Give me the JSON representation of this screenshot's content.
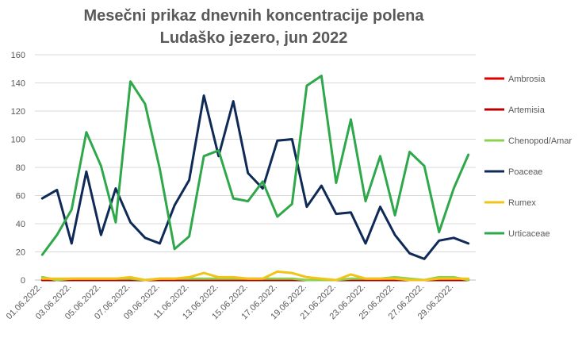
{
  "chart_data": {
    "type": "line",
    "title_lines": [
      "Mesečni prikaz dnevnih koncentracije polena",
      "Ludaško jezero, jun 2022"
    ],
    "xlabel": "",
    "ylabel": "",
    "ylim": [
      0,
      160
    ],
    "yticks": [
      0,
      20,
      40,
      60,
      80,
      100,
      120,
      140,
      160
    ],
    "grid": "horizontal",
    "legend_position": "right",
    "x": [
      "01.06.2022.",
      "02.06.2022.",
      "03.06.2022.",
      "04.06.2022.",
      "05.06.2022.",
      "06.06.2022.",
      "07.06.2022.",
      "08.06.2022.",
      "09.06.2022.",
      "10.06.2022.",
      "11.06.2022.",
      "12.06.2022.",
      "13.06.2022.",
      "14.06.2022.",
      "15.06.2022.",
      "16.06.2022.",
      "17.06.2022.",
      "18.06.2022.",
      "19.06.2022.",
      "20.06.2022.",
      "21.06.2022.",
      "22.06.2022.",
      "23.06.2022.",
      "24.06.2022.",
      "25.06.2022.",
      "26.06.2022.",
      "27.06.2022.",
      "28.06.2022.",
      "29.06.2022.",
      "30.06.2022."
    ],
    "x_tick_labels": [
      "01.06.2022.",
      "",
      "03.06.2022.",
      "",
      "05.06.2022.",
      "",
      "07.06.2022.",
      "",
      "09.06.2022.",
      "",
      "11.06.2022.",
      "",
      "13.06.2022.",
      "",
      "15.06.2022.",
      "",
      "17.06.2022.",
      "",
      "19.06.2022.",
      "",
      "21.06.2022.",
      "",
      "23.06.2022.",
      "",
      "25.06.2022.",
      "",
      "27.06.2022.",
      "",
      "29.06.2022.",
      ""
    ],
    "series": [
      {
        "name": "Ambrosia",
        "color": "#e00000",
        "values": [
          0,
          0,
          0,
          0,
          0,
          0,
          0,
          0,
          0,
          0,
          0,
          0,
          0,
          0,
          0,
          0,
          0,
          0,
          0,
          0,
          0,
          0,
          0,
          0,
          0,
          0,
          0,
          0,
          0,
          0
        ]
      },
      {
        "name": "Artemisia",
        "color": "#b80000",
        "values": [
          0,
          0,
          0,
          0,
          0,
          0,
          0,
          0,
          0,
          0,
          0,
          0,
          0,
          0,
          0,
          0,
          0,
          0,
          0,
          0,
          0,
          0,
          0,
          0,
          0,
          0,
          0,
          0,
          0,
          0
        ]
      },
      {
        "name": "Chenopod/Amar",
        "color": "#8dd14f",
        "values": [
          2,
          0,
          1,
          1,
          1,
          1,
          1,
          0,
          1,
          1,
          1,
          1,
          1,
          1,
          1,
          1,
          1,
          1,
          0,
          0,
          0,
          1,
          1,
          1,
          2,
          1,
          0,
          2,
          2,
          0
        ]
      },
      {
        "name": "Poaceae",
        "color": "#0f2a57",
        "values": [
          58,
          64,
          26,
          77,
          32,
          65,
          41,
          30,
          26,
          53,
          71,
          131,
          88,
          127,
          76,
          65,
          99,
          100,
          52,
          67,
          47,
          48,
          26,
          52,
          32,
          19,
          15,
          28,
          30,
          26
        ]
      },
      {
        "name": "Rumex",
        "color": "#f2c418",
        "values": [
          1,
          1,
          1,
          1,
          1,
          1,
          2,
          0,
          1,
          1,
          2,
          5,
          2,
          2,
          1,
          1,
          6,
          5,
          2,
          1,
          0,
          4,
          1,
          1,
          1,
          0,
          0,
          1,
          1,
          1
        ]
      },
      {
        "name": "Urticaceae",
        "color": "#2ea84a",
        "values": [
          18,
          32,
          50,
          105,
          81,
          41,
          141,
          125,
          79,
          22,
          31,
          88,
          92,
          58,
          56,
          70,
          45,
          54,
          138,
          145,
          69,
          114,
          56,
          88,
          46,
          91,
          81,
          34,
          65,
          89
        ]
      }
    ]
  }
}
